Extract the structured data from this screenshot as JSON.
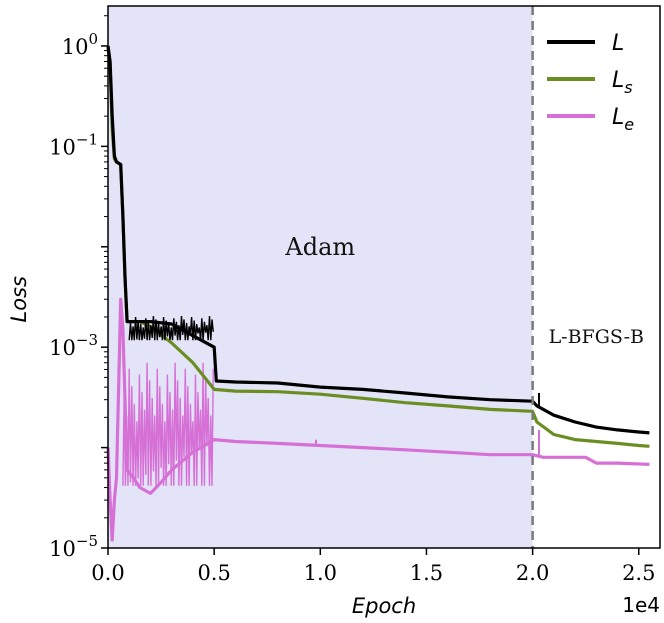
{
  "chart_data": {
    "type": "line",
    "title": "",
    "xlabel": "Epoch",
    "ylabel": "Loss",
    "x_scale_label": "1e4",
    "xlim": [
      0,
      26000
    ],
    "ylim": [
      1e-05,
      2.5
    ],
    "y_scale": "log",
    "grid": false,
    "legend_position": "top-right",
    "x_tick_labels": [
      "0.0",
      "0.5",
      "1.0",
      "1.5",
      "2.0",
      "2.5"
    ],
    "y_tick_labels": [
      {
        "base": "10",
        "exp": "0",
        "value": 1
      },
      {
        "base": "10",
        "exp": "−1",
        "value": 0.1
      },
      {
        "base": "10",
        "exp": "−3",
        "value": 0.001
      },
      {
        "base": "10",
        "exp": "−5",
        "value": 1e-05
      }
    ],
    "regions": [
      {
        "label": "Adam",
        "x_start": 0,
        "x_end": 20000,
        "color": "#e3e4f7"
      },
      {
        "label": "L-BFGS-B",
        "x_start": 20000,
        "x_end": 26000,
        "color": "#ffffff"
      }
    ],
    "divider_x": 20000,
    "series": [
      {
        "name": "L",
        "legend_base": "L",
        "legend_sub": "",
        "color": "#000000",
        "points": [
          [
            0,
            1.0
          ],
          [
            100,
            0.7
          ],
          [
            200,
            0.2
          ],
          [
            300,
            0.08
          ],
          [
            400,
            0.07
          ],
          [
            600,
            0.066
          ],
          [
            700,
            0.02
          ],
          [
            800,
            0.005
          ],
          [
            900,
            0.0018
          ],
          [
            1500,
            0.0018
          ],
          [
            2000,
            0.0018
          ],
          [
            3000,
            0.0017
          ],
          [
            4000,
            0.0013
          ],
          [
            5000,
            0.001
          ],
          [
            5100,
            0.00046
          ],
          [
            6000,
            0.00045
          ],
          [
            8000,
            0.00044
          ],
          [
            10000,
            0.0004
          ],
          [
            12000,
            0.00038
          ],
          [
            14000,
            0.00035
          ],
          [
            16000,
            0.00032
          ],
          [
            18000,
            0.0003
          ],
          [
            20000,
            0.00029
          ],
          [
            20200,
            0.00026
          ],
          [
            21000,
            0.00021
          ],
          [
            22000,
            0.00018
          ],
          [
            23000,
            0.00016
          ],
          [
            24000,
            0.00015
          ],
          [
            25000,
            0.000143
          ],
          [
            25500,
            0.00014
          ]
        ]
      },
      {
        "name": "Ls",
        "legend_base": "L",
        "legend_sub": "s",
        "color": "#6b8e23",
        "points": [
          [
            0,
            1.0
          ],
          [
            100,
            0.6
          ],
          [
            200,
            0.15
          ],
          [
            300,
            0.075
          ],
          [
            400,
            0.07
          ],
          [
            600,
            0.066
          ],
          [
            700,
            0.02
          ],
          [
            800,
            0.005
          ],
          [
            900,
            0.0018
          ],
          [
            1500,
            0.0018
          ],
          [
            2000,
            0.0016
          ],
          [
            3000,
            0.0011
          ],
          [
            4000,
            0.0007
          ],
          [
            5000,
            0.00038
          ],
          [
            6000,
            0.000365
          ],
          [
            8000,
            0.00036
          ],
          [
            10000,
            0.00034
          ],
          [
            12000,
            0.00031
          ],
          [
            14000,
            0.00028
          ],
          [
            16000,
            0.00026
          ],
          [
            18000,
            0.00024
          ],
          [
            20000,
            0.00023
          ],
          [
            20200,
            0.00018
          ],
          [
            21000,
            0.000135
          ],
          [
            22000,
            0.00012
          ],
          [
            23000,
            0.000115
          ],
          [
            24000,
            0.00011
          ],
          [
            25000,
            0.000105
          ],
          [
            25500,
            0.000103
          ]
        ]
      },
      {
        "name": "Le",
        "legend_base": "L",
        "legend_sub": "e",
        "color": "#d670d6",
        "points": [
          [
            0,
            0.0001
          ],
          [
            100,
            3e-05
          ],
          [
            200,
            1.2e-05
          ],
          [
            300,
            3e-05
          ],
          [
            400,
            5e-05
          ],
          [
            600,
            0.003
          ],
          [
            700,
            0.0015
          ],
          [
            900,
            6e-05
          ],
          [
            1200,
            5e-05
          ],
          [
            1500,
            4e-05
          ],
          [
            2000,
            3.5e-05
          ],
          [
            2500,
            4.5e-05
          ],
          [
            3000,
            6e-05
          ],
          [
            4000,
            9e-05
          ],
          [
            5000,
            0.00012
          ],
          [
            6000,
            0.000115
          ],
          [
            8000,
            0.00011
          ],
          [
            10000,
            0.000105
          ],
          [
            12000,
            0.0001
          ],
          [
            14000,
            9.5e-05
          ],
          [
            16000,
            9e-05
          ],
          [
            18000,
            8.5e-05
          ],
          [
            20000,
            8.5e-05
          ],
          [
            20500,
            8e-05
          ],
          [
            21500,
            8e-05
          ],
          [
            22500,
            8e-05
          ],
          [
            23000,
            7e-05
          ],
          [
            24000,
            7e-05
          ],
          [
            25500,
            6.8e-05
          ]
        ]
      }
    ],
    "noise_bands": [
      {
        "series": "L",
        "x_start": 1000,
        "x_end": 5000,
        "low": 0.0011,
        "high": 0.0021
      },
      {
        "series": "Le",
        "x_start": 700,
        "x_end": 5000,
        "low": 3e-05,
        "high": 0.0008
      }
    ],
    "spikes": [
      {
        "series": "Le",
        "x": 9800,
        "value": 0.00012
      },
      {
        "series": "Le",
        "x": 20300,
        "value": 0.00015
      },
      {
        "series": "L",
        "x": 20300,
        "value": 0.00035
      }
    ]
  }
}
